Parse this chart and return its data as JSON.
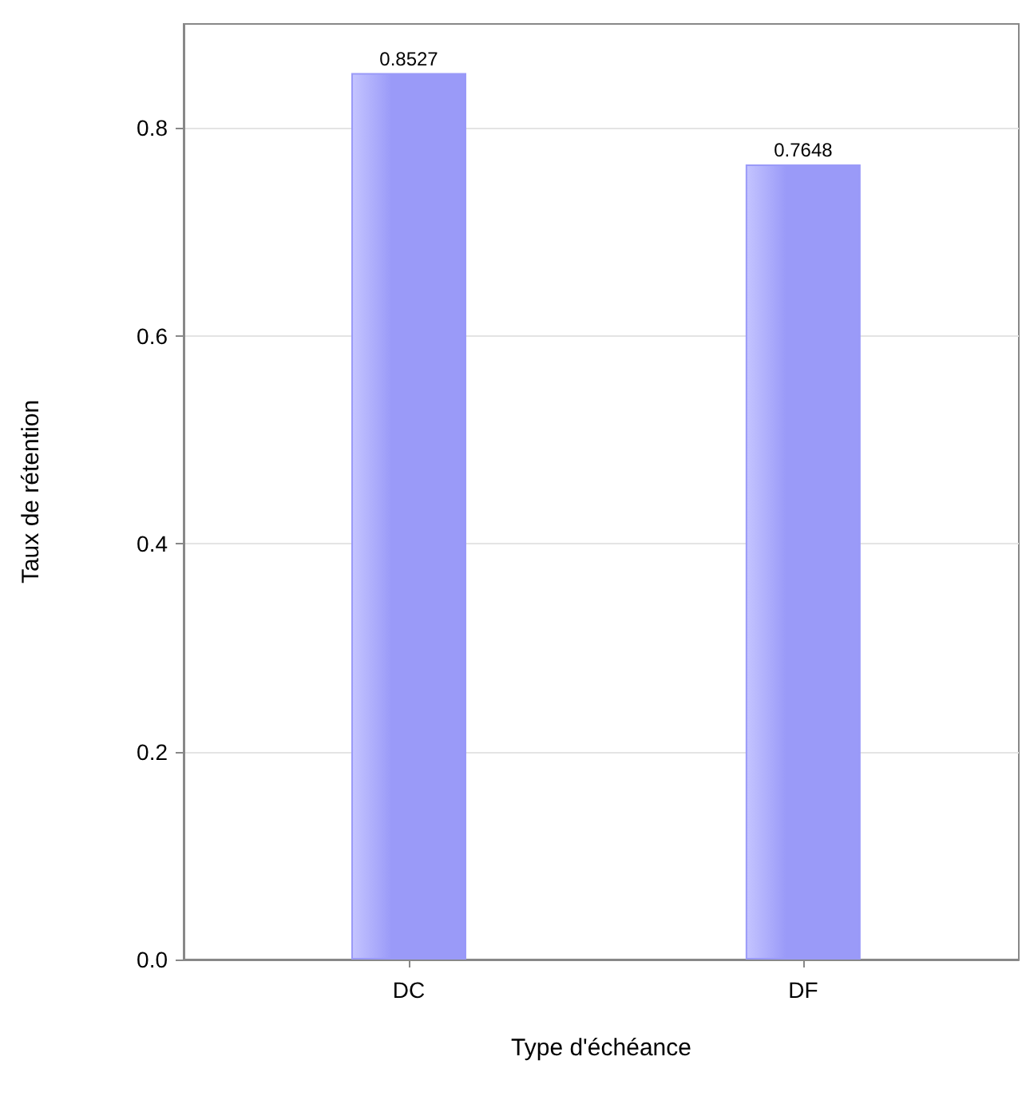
{
  "chart_data": {
    "type": "bar",
    "xlabel": "Type d'échéance",
    "ylabel": "Taux de rétention",
    "categories": [
      "DC",
      "DF"
    ],
    "values": [
      0.8527,
      0.7648
    ],
    "color": "#9a9af8",
    "data_labels": true,
    "ylim": [
      0,
      0.9
    ],
    "yticks": [
      {
        "value": 0,
        "label": "0.0"
      },
      {
        "value": 0.2,
        "label": "0.2"
      },
      {
        "value": 0.4,
        "label": "0.4"
      },
      {
        "value": 0.6,
        "label": "0.6"
      },
      {
        "value": 0.8,
        "label": "0.8"
      }
    ],
    "grid": "y"
  }
}
